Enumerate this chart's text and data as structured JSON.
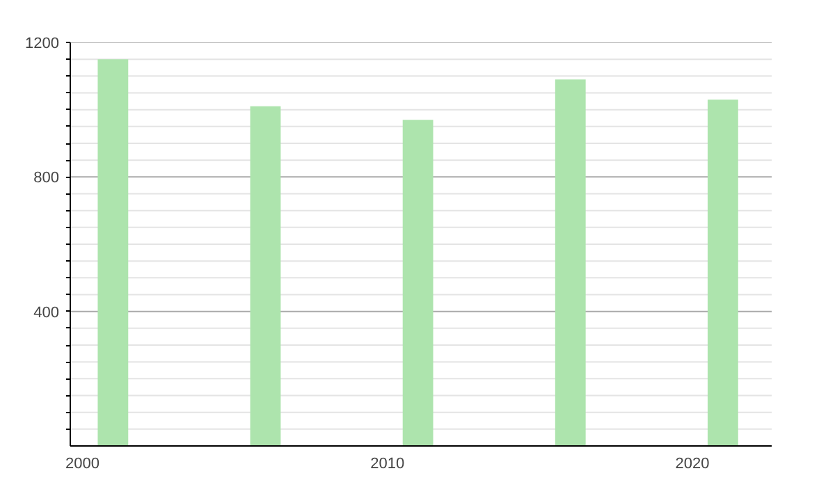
{
  "chart_data": {
    "type": "bar",
    "x": [
      2001,
      2006,
      2011,
      2016,
      2021
    ],
    "values": [
      1150,
      1010,
      970,
      1090,
      1030
    ],
    "color": "#ade4ad",
    "xlim": [
      1999.6,
      2022.6
    ],
    "xticks": [
      2000,
      2010,
      2020
    ],
    "ylim": [
      0,
      1200
    ],
    "yticks": [
      {
        "value": 50,
        "label": null
      },
      {
        "value": 100,
        "label": null
      },
      {
        "value": 150,
        "label": null
      },
      {
        "value": 200,
        "label": null
      },
      {
        "value": 250,
        "label": null
      },
      {
        "value": 300,
        "label": null
      },
      {
        "value": 350,
        "label": null
      },
      400,
      {
        "value": 450,
        "label": null
      },
      {
        "value": 500,
        "label": null
      },
      {
        "value": 550,
        "label": null
      },
      {
        "value": 600,
        "label": null
      },
      {
        "value": 650,
        "label": null
      },
      {
        "value": 700,
        "label": null
      },
      {
        "value": 750,
        "label": null
      },
      800,
      {
        "value": 850,
        "label": null
      },
      {
        "value": 900,
        "label": null
      },
      {
        "value": 950,
        "label": null
      },
      {
        "value": 1000,
        "label": null
      },
      {
        "value": 1050,
        "label": null
      },
      {
        "value": 1100,
        "label": null
      },
      {
        "value": 1150,
        "label": null
      },
      1200
    ],
    "grid": "y"
  }
}
